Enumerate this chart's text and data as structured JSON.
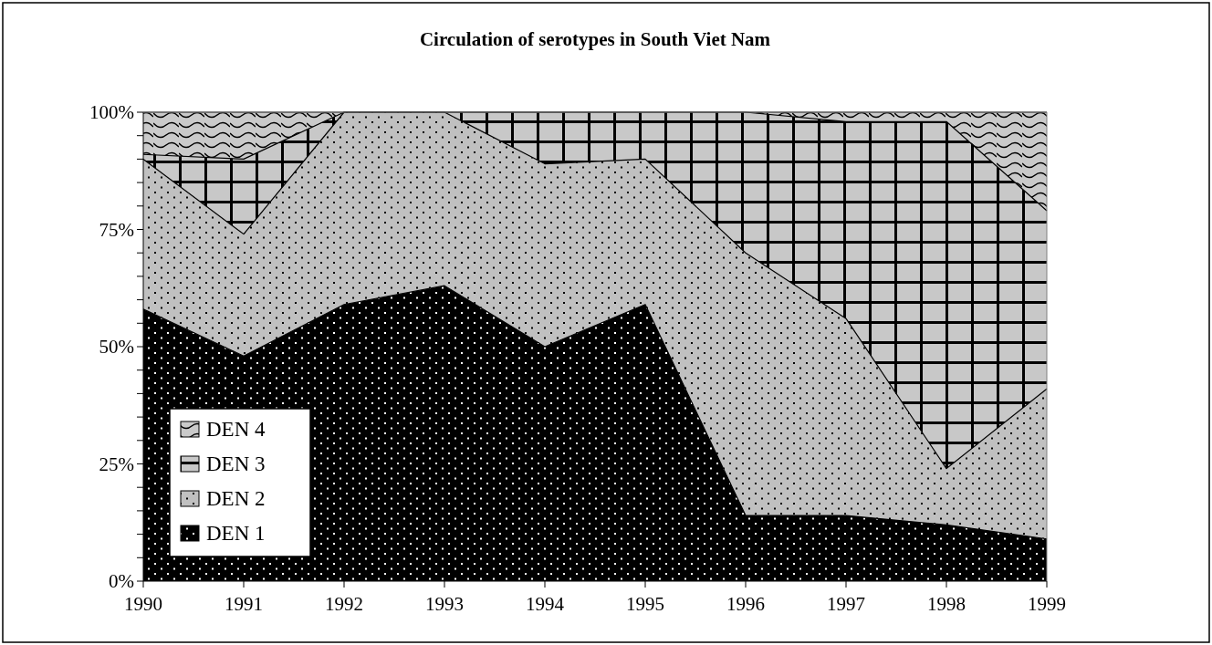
{
  "chart_data": {
    "type": "area",
    "stacked": true,
    "title": "Circulation of serotypes in South Viet Nam",
    "x": [
      1990,
      1991,
      1992,
      1993,
      1994,
      1995,
      1996,
      1997,
      1998,
      1999
    ],
    "xlim": [
      1990,
      1999
    ],
    "xticks": [
      1990,
      1991,
      1992,
      1993,
      1994,
      1995,
      1996,
      1997,
      1998,
      1999
    ],
    "ylim": [
      0,
      100
    ],
    "yticks": [
      {
        "value": 0,
        "label": "0%"
      },
      {
        "value": 5,
        "label": null
      },
      {
        "value": 10,
        "label": null
      },
      {
        "value": 15,
        "label": null
      },
      {
        "value": 20,
        "label": null
      },
      {
        "value": 25,
        "label": "25%"
      },
      {
        "value": 30,
        "label": null
      },
      {
        "value": 35,
        "label": null
      },
      {
        "value": 40,
        "label": null
      },
      {
        "value": 45,
        "label": null
      },
      {
        "value": 50,
        "label": "50%"
      },
      {
        "value": 55,
        "label": null
      },
      {
        "value": 60,
        "label": null
      },
      {
        "value": 65,
        "label": null
      },
      {
        "value": 70,
        "label": null
      },
      {
        "value": 75,
        "label": "75%"
      },
      {
        "value": 80,
        "label": null
      },
      {
        "value": 85,
        "label": null
      },
      {
        "value": 90,
        "label": null
      },
      {
        "value": 95,
        "label": null
      },
      {
        "value": 100,
        "label": "100%"
      }
    ],
    "grid": false,
    "legend": "bottom left",
    "series": [
      {
        "name": "DEN 1",
        "color": "#000000",
        "values": [
          58,
          48,
          59,
          63,
          50,
          59,
          14,
          14,
          12,
          9
        ]
      },
      {
        "name": "DEN 2",
        "color": "#c0c0c0",
        "values": [
          32,
          26,
          41,
          37,
          39,
          31,
          56,
          42,
          12,
          32
        ]
      },
      {
        "name": "DEN 3",
        "color": "#c8c8c8",
        "values": [
          1,
          16,
          0,
          0,
          11,
          10,
          30,
          42,
          74,
          38
        ]
      },
      {
        "name": "DEN 4",
        "color": "#cacaca",
        "values": [
          9,
          10,
          0,
          0,
          0,
          0,
          0,
          2,
          2,
          21
        ]
      }
    ]
  }
}
